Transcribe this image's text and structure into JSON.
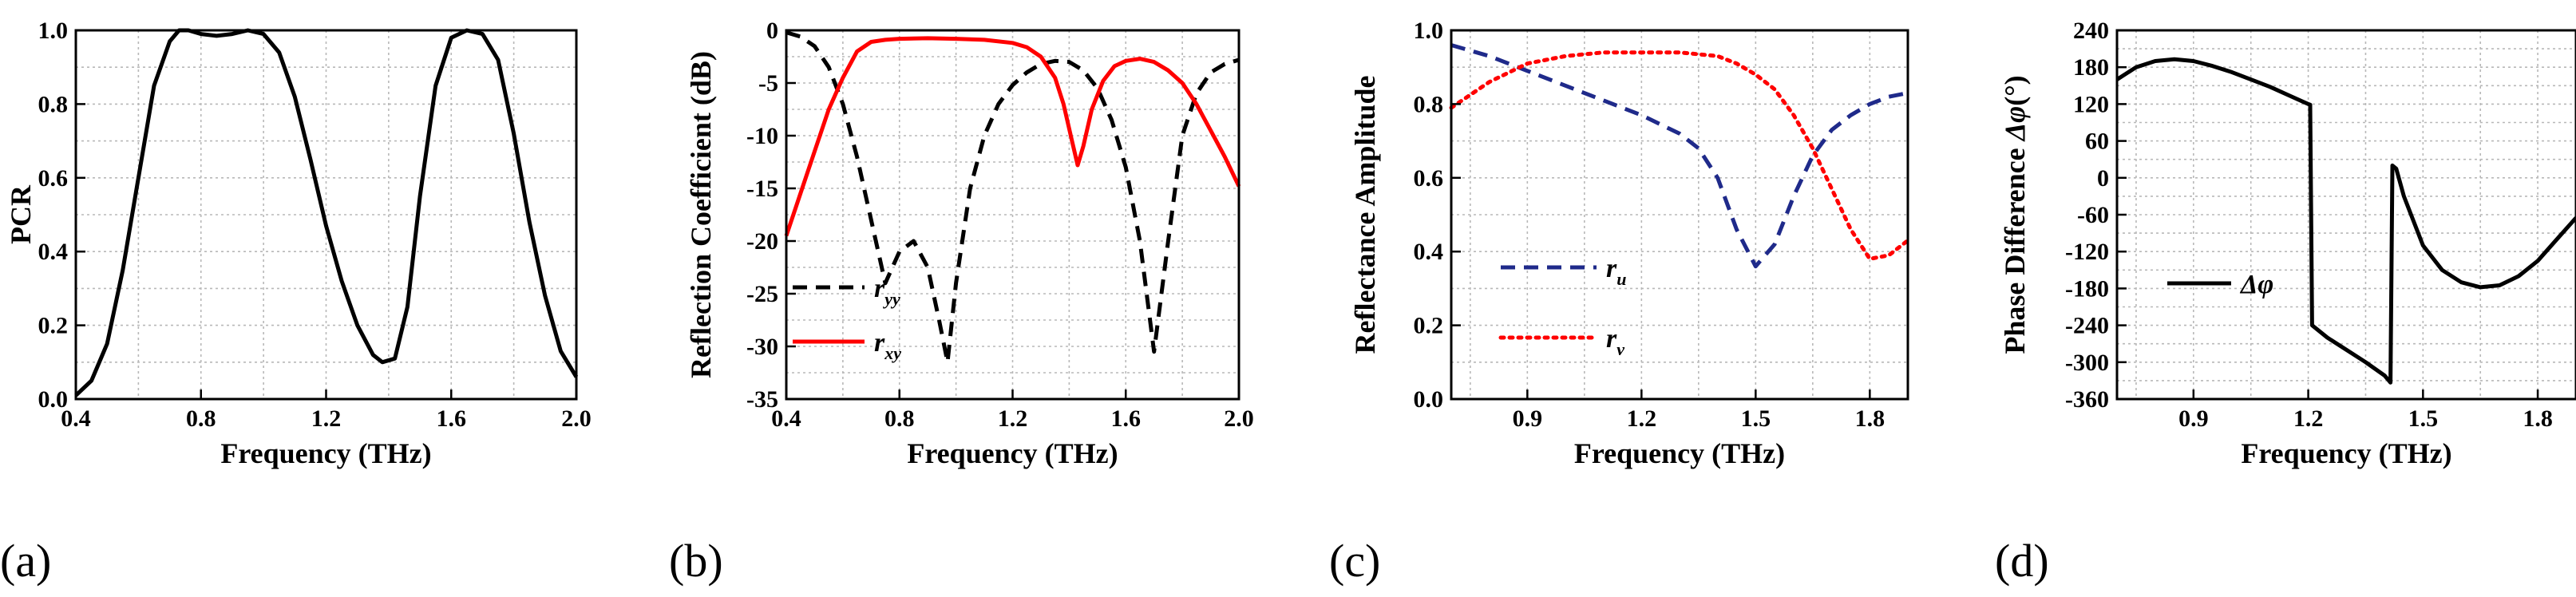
{
  "chart_data": [
    {
      "panel": "(a)",
      "type": "line",
      "xlabel": "Frequency (THz)",
      "ylabel": "PCR",
      "xlim": [
        0.4,
        2.0
      ],
      "ylim": [
        0.0,
        1.0
      ],
      "xticks": [
        0.4,
        0.8,
        1.2,
        1.6,
        2.0
      ],
      "xtick_labels": [
        "0.4",
        "0.8",
        "1.2",
        "1.6",
        "2.0"
      ],
      "yticks": [
        0.0,
        0.2,
        0.4,
        0.6,
        0.8,
        1.0
      ],
      "ytick_labels": [
        "0.0",
        "0.2",
        "0.4",
        "0.6",
        "0.8",
        "1.0"
      ],
      "grid": true,
      "legend": null,
      "series": [
        {
          "name": "PCR",
          "color": "#000000",
          "dash": "solid",
          "x": [
            0.4,
            0.45,
            0.5,
            0.55,
            0.6,
            0.65,
            0.7,
            0.73,
            0.76,
            0.8,
            0.85,
            0.9,
            0.95,
            1.0,
            1.05,
            1.1,
            1.15,
            1.2,
            1.25,
            1.3,
            1.35,
            1.38,
            1.42,
            1.46,
            1.5,
            1.55,
            1.6,
            1.65,
            1.7,
            1.75,
            1.8,
            1.85,
            1.9,
            1.95,
            2.0
          ],
          "y": [
            0.01,
            0.05,
            0.15,
            0.35,
            0.6,
            0.85,
            0.97,
            1.0,
            1.0,
            0.99,
            0.985,
            0.99,
            1.0,
            0.99,
            0.94,
            0.82,
            0.65,
            0.47,
            0.32,
            0.2,
            0.12,
            0.1,
            0.11,
            0.25,
            0.55,
            0.85,
            0.98,
            1.0,
            0.99,
            0.92,
            0.72,
            0.48,
            0.28,
            0.13,
            0.06
          ]
        }
      ]
    },
    {
      "panel": "(b)",
      "type": "line",
      "xlabel": "Frequency (THz)",
      "ylabel": "Reflection Coefficient (dB)",
      "xlim": [
        0.4,
        2.0
      ],
      "ylim": [
        -35,
        0
      ],
      "xticks": [
        0.4,
        0.8,
        1.2,
        1.6,
        2.0
      ],
      "xtick_labels": [
        "0.4",
        "0.8",
        "1.2",
        "1.6",
        "2.0"
      ],
      "yticks": [
        -35,
        -30,
        -25,
        -20,
        -15,
        -10,
        -5,
        0
      ],
      "ytick_labels": [
        "-35",
        "-30",
        "-25",
        "-20",
        "-15",
        "-10",
        "-5",
        "0"
      ],
      "grid": true,
      "legend": "left",
      "series": [
        {
          "name": "r_yy",
          "label_main": "r",
          "label_sub": "yy",
          "color": "#000000",
          "dash": "dashed",
          "x": [
            0.4,
            0.45,
            0.5,
            0.55,
            0.6,
            0.65,
            0.7,
            0.75,
            0.8,
            0.85,
            0.9,
            0.94,
            0.97,
            1.0,
            1.05,
            1.1,
            1.15,
            1.2,
            1.25,
            1.3,
            1.35,
            1.4,
            1.45,
            1.5,
            1.55,
            1.6,
            1.65,
            1.7,
            1.75,
            1.8,
            1.85,
            1.9,
            1.95,
            2.0
          ],
          "y": [
            -0.2,
            -0.6,
            -1.5,
            -3.5,
            -7.0,
            -12.0,
            -18.0,
            -24.0,
            -21.0,
            -20.0,
            -22.5,
            -27.5,
            -31.5,
            -24.0,
            -15.0,
            -10.0,
            -7.0,
            -5.2,
            -4.0,
            -3.2,
            -2.9,
            -3.0,
            -3.8,
            -5.5,
            -8.5,
            -13.0,
            -20.0,
            -30.5,
            -20.0,
            -10.0,
            -6.0,
            -4.0,
            -3.2,
            -2.8
          ]
        },
        {
          "name": "r_xy",
          "label_main": "r",
          "label_sub": "xy",
          "color": "#ff0000",
          "dash": "solid",
          "x": [
            0.4,
            0.45,
            0.5,
            0.55,
            0.6,
            0.65,
            0.7,
            0.75,
            0.8,
            0.9,
            1.0,
            1.1,
            1.2,
            1.25,
            1.3,
            1.35,
            1.38,
            1.41,
            1.43,
            1.45,
            1.48,
            1.52,
            1.56,
            1.6,
            1.65,
            1.7,
            1.75,
            1.8,
            1.85,
            1.9,
            1.95,
            2.0
          ],
          "y": [
            -19.5,
            -15.5,
            -11.5,
            -7.5,
            -4.5,
            -2.0,
            -1.1,
            -0.9,
            -0.8,
            -0.75,
            -0.8,
            -0.9,
            -1.2,
            -1.6,
            -2.5,
            -4.5,
            -7.0,
            -10.5,
            -12.8,
            -11.0,
            -7.5,
            -4.8,
            -3.4,
            -2.9,
            -2.7,
            -3.0,
            -3.8,
            -5.0,
            -7.0,
            -9.5,
            -12.0,
            -14.8
          ]
        }
      ]
    },
    {
      "panel": "(c)",
      "type": "line",
      "xlabel": "Frequency (THz)",
      "ylabel": "Reflectance Amplitude",
      "xlim": [
        0.7,
        1.9
      ],
      "ylim": [
        0.0,
        1.0
      ],
      "xticks": [
        0.9,
        1.2,
        1.5,
        1.8
      ],
      "xtick_labels": [
        "0.9",
        "1.2",
        "1.5",
        "1.8"
      ],
      "yticks": [
        0.0,
        0.2,
        0.4,
        0.6,
        0.8,
        1.0
      ],
      "ytick_labels": [
        "0.0",
        "0.2",
        "0.4",
        "0.6",
        "0.8",
        "1.0"
      ],
      "grid": true,
      "legend": "lower-left",
      "series": [
        {
          "name": "r_u",
          "label_main": "r",
          "label_sub": "u",
          "color": "#1f2a8a",
          "dash": "dashed",
          "x": [
            0.7,
            0.8,
            0.9,
            1.0,
            1.1,
            1.2,
            1.3,
            1.35,
            1.4,
            1.45,
            1.5,
            1.55,
            1.6,
            1.65,
            1.7,
            1.75,
            1.8,
            1.85,
            1.9
          ],
          "y": [
            0.96,
            0.93,
            0.89,
            0.85,
            0.81,
            0.77,
            0.72,
            0.68,
            0.6,
            0.46,
            0.36,
            0.42,
            0.55,
            0.66,
            0.73,
            0.77,
            0.8,
            0.82,
            0.83
          ]
        },
        {
          "name": "r_v",
          "label_main": "r",
          "label_sub": "v",
          "color": "#ff0000",
          "dash": "dotted",
          "x": [
            0.7,
            0.8,
            0.9,
            1.0,
            1.1,
            1.2,
            1.3,
            1.4,
            1.45,
            1.5,
            1.55,
            1.6,
            1.65,
            1.7,
            1.75,
            1.8,
            1.85,
            1.9
          ],
          "y": [
            0.79,
            0.86,
            0.91,
            0.93,
            0.94,
            0.94,
            0.94,
            0.93,
            0.91,
            0.88,
            0.84,
            0.77,
            0.68,
            0.57,
            0.46,
            0.38,
            0.39,
            0.43
          ]
        }
      ]
    },
    {
      "panel": "(d)",
      "type": "line",
      "xlabel": "Frequency (THz)",
      "ylabel": "Phase Difference Δφ(°)",
      "ylabel_main": "Phase Difference ",
      "ylabel_symbol": "Δφ",
      "ylabel_unit": "(°)",
      "xlim": [
        0.7,
        1.9
      ],
      "ylim": [
        -360,
        240
      ],
      "xticks": [
        0.9,
        1.2,
        1.5,
        1.8
      ],
      "xtick_labels": [
        "0.9",
        "1.2",
        "1.5",
        "1.8"
      ],
      "yticks": [
        -360,
        -300,
        -240,
        -180,
        -120,
        -60,
        0,
        60,
        120,
        180,
        240
      ],
      "ytick_labels": [
        "-360",
        "-300",
        "-240",
        "-180",
        "-120",
        "-60",
        "0",
        "60",
        "120",
        "180",
        "240"
      ],
      "grid": true,
      "legend": "upper-left",
      "series": [
        {
          "name": "Δφ",
          "color": "#000000",
          "dash": "solid",
          "x": [
            0.7,
            0.75,
            0.8,
            0.85,
            0.9,
            0.95,
            1.0,
            1.05,
            1.1,
            1.15,
            1.2,
            1.205,
            1.21,
            1.25,
            1.3,
            1.35,
            1.4,
            1.415,
            1.42,
            1.43,
            1.45,
            1.5,
            1.55,
            1.6,
            1.65,
            1.7,
            1.75,
            1.8,
            1.85,
            1.9
          ],
          "y": [
            160,
            180,
            190,
            193,
            190,
            182,
            172,
            160,
            148,
            134,
            120,
            119,
            -240,
            -260,
            -280,
            -300,
            -322,
            -333,
            20,
            15,
            -30,
            -110,
            -150,
            -170,
            -178,
            -175,
            -160,
            -135,
            -100,
            -65
          ]
        }
      ]
    }
  ]
}
